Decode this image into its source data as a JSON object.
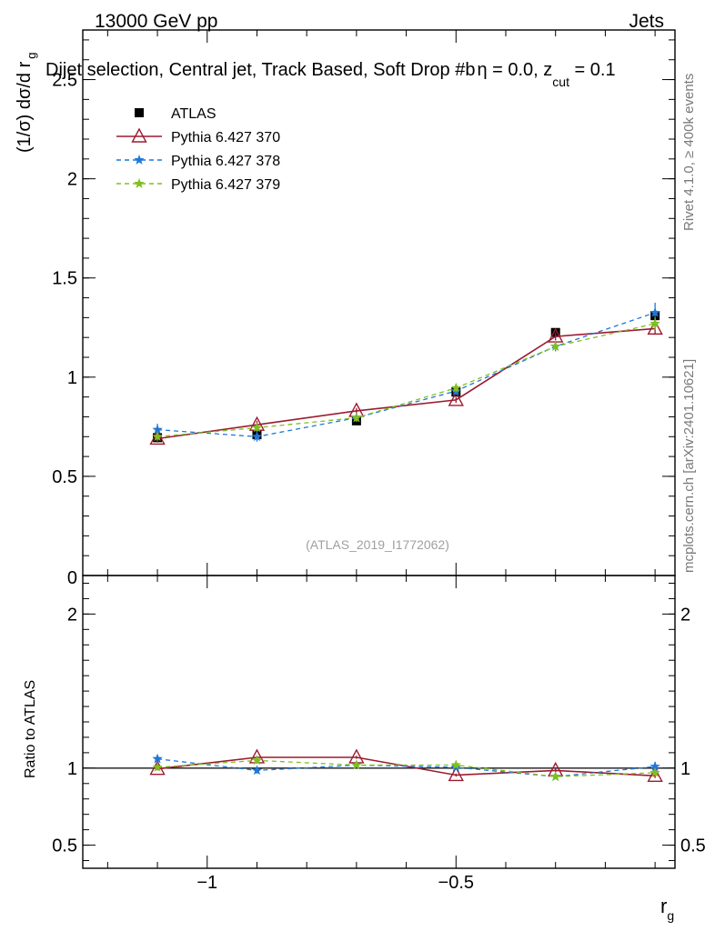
{
  "header": {
    "left": "13000 GeV pp",
    "right": "Jets"
  },
  "plot_title_parts": {
    "main": "Dijet selection, Central jet, Track Based, Soft Drop #b",
    "eta": "η = 0.0, z",
    "sub": "cut",
    "tail": " = 0.1"
  },
  "side_labels": {
    "rivet": "Rivet 4.1.0, ≥ 400k events",
    "mcplots": "mcplots.cern.ch [arXiv:2401.10621]"
  },
  "watermark": "(ATLAS_2019_I1772062)",
  "colors": {
    "atlas": "#000000",
    "py370": "#9b1b30",
    "py378": "#1f77d8",
    "py379": "#7fbf1f"
  },
  "chart_data": [
    {
      "type": "line",
      "panel": "main",
      "ylabel_parts": {
        "main": "(1/σ) dσ/d r",
        "sub": "g"
      },
      "xlim": [
        -1.25,
        -0.06
      ],
      "ylim": [
        0,
        2.75
      ],
      "yticks": [
        0.5,
        1,
        1.5,
        2,
        2.5
      ],
      "ytick_labels": [
        "0.5",
        "1",
        "1.5",
        "2",
        "2.5"
      ],
      "extra_label": "0",
      "legend_position": "top-left",
      "x": [
        -1.1,
        -0.9,
        -0.7,
        -0.5,
        -0.3,
        -0.1
      ],
      "series": [
        {
          "name": "ATLAS",
          "style": "square",
          "values": [
            0.695,
            0.71,
            0.78,
            0.925,
            1.225,
            1.31
          ],
          "errors": [
            0.02,
            0.02,
            0.02,
            0.02,
            0.02,
            0.02
          ]
        },
        {
          "name": "Pythia 6.427 370",
          "style": "triangle",
          "values": [
            0.69,
            0.76,
            0.83,
            0.885,
            1.205,
            1.245
          ],
          "errors": [
            0.02,
            0.02,
            0.015,
            0.015,
            0.02,
            0.03
          ]
        },
        {
          "name": "Pythia 6.427 378",
          "style": "star-dashed",
          "values": [
            0.735,
            0.7,
            0.795,
            0.93,
            1.155,
            1.325
          ],
          "errors": [
            0.03,
            0.025,
            0.02,
            0.02,
            0.025,
            0.05
          ]
        },
        {
          "name": "Pythia 6.427 379",
          "style": "star-dashed",
          "values": [
            0.7,
            0.745,
            0.795,
            0.945,
            1.155,
            1.27
          ],
          "errors": [
            0.02,
            0.02,
            0.02,
            0.02,
            0.02,
            0.03
          ]
        }
      ]
    },
    {
      "type": "line",
      "panel": "ratio",
      "ylabel": "Ratio to ATLAS",
      "xlabel": "r",
      "xlabel_sub": "g",
      "xlim": [
        -1.25,
        -0.06
      ],
      "xticks": [
        -1,
        -0.5
      ],
      "xtick_labels": [
        "−1",
        "−0.5"
      ],
      "ylim": [
        0.35,
        2.25
      ],
      "yticks": [
        0.5,
        1,
        2
      ],
      "ytick_labels": [
        "0.5",
        "1",
        "2"
      ],
      "x": [
        -1.1,
        -0.9,
        -0.7,
        -0.5,
        -0.3,
        -0.1
      ],
      "series": [
        {
          "name": "Pythia 6.427 370",
          "style": "triangle",
          "values": [
            0.995,
            1.07,
            1.07,
            0.955,
            0.985,
            0.95
          ],
          "errors": [
            0.01,
            0.01,
            0.01,
            0.01,
            0.01,
            0.015
          ]
        },
        {
          "name": "Pythia 6.427 378",
          "style": "star-dashed",
          "values": [
            1.06,
            0.985,
            1.02,
            1.005,
            0.945,
            1.01
          ],
          "errors": [
            0.025,
            0.02,
            0.015,
            0.015,
            0.015,
            0.03
          ]
        },
        {
          "name": "Pythia 6.427 379",
          "style": "star-dashed",
          "values": [
            1.005,
            1.05,
            1.02,
            1.02,
            0.945,
            0.97
          ],
          "errors": [
            0.015,
            0.015,
            0.015,
            0.015,
            0.015,
            0.02
          ]
        }
      ]
    }
  ]
}
